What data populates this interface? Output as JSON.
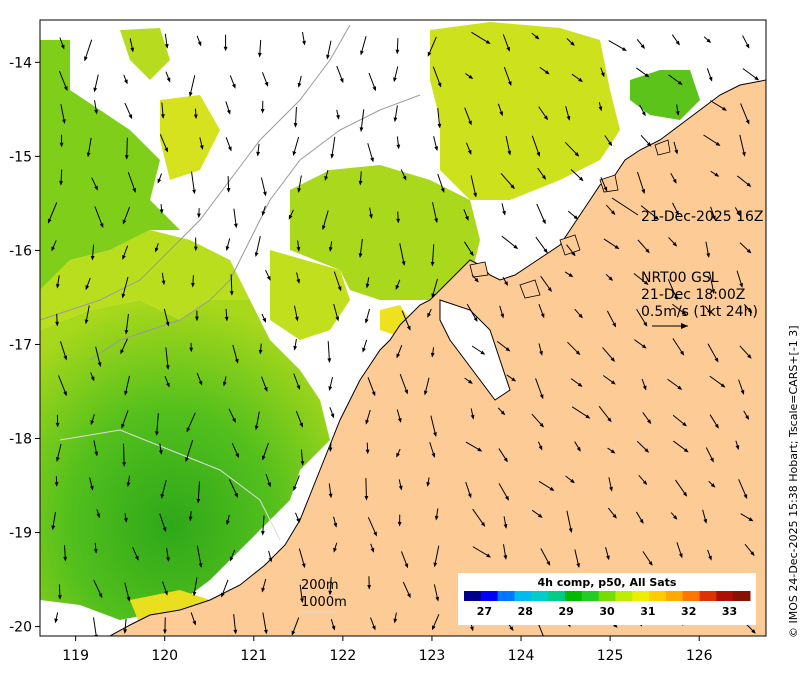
{
  "map": {
    "x_axis": {
      "ticks": [
        "119",
        "120",
        "121",
        "122",
        "123",
        "124",
        "125",
        "126"
      ],
      "values": [
        119,
        120,
        121,
        122,
        123,
        124,
        125,
        126
      ],
      "range": [
        118.6,
        126.75
      ]
    },
    "y_axis": {
      "ticks": [
        "-14",
        "-15",
        "-16",
        "-17",
        "-18",
        "-19",
        "-20"
      ],
      "values": [
        -14,
        -15,
        -16,
        -17,
        -18,
        -19,
        -20
      ],
      "range": [
        -20.1,
        -13.55
      ]
    },
    "annotations": {
      "satellite_time": "21-Dec-2025 16Z",
      "model_name": "NRT00 GSL",
      "model_time": "21-Dec 18:00Z",
      "arrow_scale": "0.5m/s (1kt 24h)"
    },
    "contour_legend": {
      "line1": "200m",
      "line2": "1000m"
    },
    "colorbar": {
      "title": "4h comp, p50, All Sats",
      "ticks": [
        "27",
        "28",
        "29",
        "30",
        "31",
        "32",
        "33"
      ],
      "range": [
        26.5,
        33.5
      ],
      "colors": [
        "#00008b",
        "#0000ff",
        "#0077ff",
        "#00bbee",
        "#00cccc",
        "#00cc88",
        "#00bb00",
        "#22cc22",
        "#77dd00",
        "#bbee00",
        "#eeee00",
        "#ffcc00",
        "#ffaa00",
        "#ff7700",
        "#dd3300",
        "#aa1100",
        "#881100"
      ]
    },
    "credit": "© IMOS 24-Dec-2025 15:38 Hobart; Tscale=CARS+[-1 3]",
    "colors": {
      "land": "#fdcb96",
      "coast": "#000000",
      "contour": "#9a9a9a",
      "frame": "#000000"
    }
  }
}
